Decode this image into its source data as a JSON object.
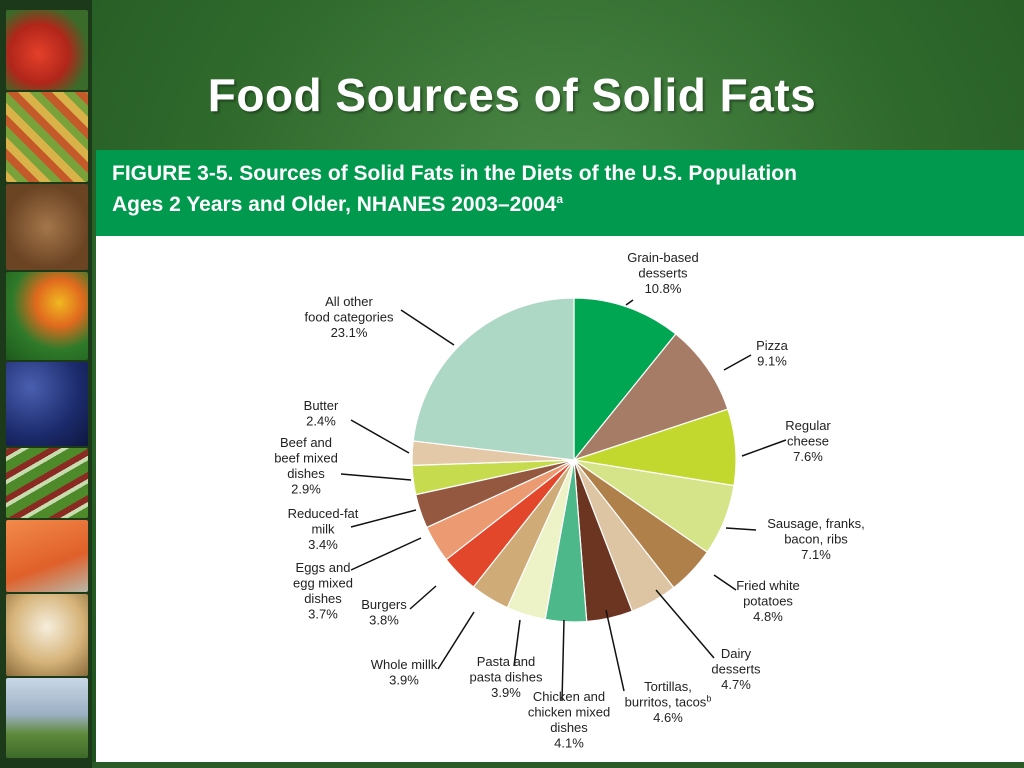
{
  "slide": {
    "title": "Food Sources of Solid Fats"
  },
  "figure": {
    "heading_line1": "FIGURE 3-5. Sources of Solid Fats in the Diets of the U.S. Population",
    "heading_line2": "Ages 2 Years and Older, NHANES 2003–2004",
    "heading_sup": "a"
  },
  "colors": {
    "header_green": "#00994d",
    "background_green": "#2f6a2c"
  },
  "chart_data": {
    "type": "pie",
    "title": "FIGURE 3-5. Sources of Solid Fats in the Diets of the U.S. Population Ages 2 Years and Older, NHANES 2003–2004",
    "slices": [
      {
        "lines": [
          "Grain-based",
          "desserts",
          "10.8%"
        ],
        "value": 10.8,
        "color": "#00a651"
      },
      {
        "lines": [
          "Pizza",
          "9.1%"
        ],
        "value": 9.1,
        "color": "#a67c66"
      },
      {
        "lines": [
          "Regular",
          "cheese",
          "7.6%"
        ],
        "value": 7.6,
        "color": "#c3d82f"
      },
      {
        "lines": [
          "Sausage, franks,",
          "bacon, ribs",
          "7.1%"
        ],
        "value": 7.1,
        "color": "#d6e489"
      },
      {
        "lines": [
          "Fried white",
          "potatoes",
          "4.8%"
        ],
        "value": 4.8,
        "color": "#b0804a"
      },
      {
        "lines": [
          "Dairy",
          "desserts",
          "4.7%"
        ],
        "value": 4.7,
        "color": "#ddc4a3"
      },
      {
        "lines": [
          "Tortillas,",
          "burritos, tacos",
          "4.6%"
        ],
        "sup": "b",
        "value": 4.6,
        "color": "#6b3522"
      },
      {
        "lines": [
          "Chicken and",
          "chicken mixed",
          "dishes",
          "4.1%"
        ],
        "value": 4.1,
        "color": "#4db98a"
      },
      {
        "lines": [
          "Pasta and",
          "pasta dishes",
          "3.9%"
        ],
        "value": 3.9,
        "color": "#eef2c7"
      },
      {
        "lines": [
          "Whole millk",
          "3.9%"
        ],
        "value": 3.9,
        "color": "#cfab78"
      },
      {
        "lines": [
          "Burgers",
          "3.8%"
        ],
        "value": 3.8,
        "color": "#e2472b"
      },
      {
        "lines": [
          "Eggs and",
          "egg mixed",
          "dishes",
          "3.7%"
        ],
        "value": 3.7,
        "color": "#ec9a72"
      },
      {
        "lines": [
          "Reduced-fat",
          "milk",
          "3.4%"
        ],
        "value": 3.4,
        "color": "#93583f"
      },
      {
        "lines": [
          "Beef and",
          "beef mixed",
          "dishes",
          "2.9%"
        ],
        "value": 2.9,
        "color": "#c7db4e"
      },
      {
        "lines": [
          "Butter",
          "2.4%"
        ],
        "value": 2.4,
        "color": "#e4c9a8"
      },
      {
        "lines": [
          "All other",
          "food categories",
          "23.1%"
        ],
        "value": 23.1,
        "color": "#add8c5"
      }
    ]
  }
}
